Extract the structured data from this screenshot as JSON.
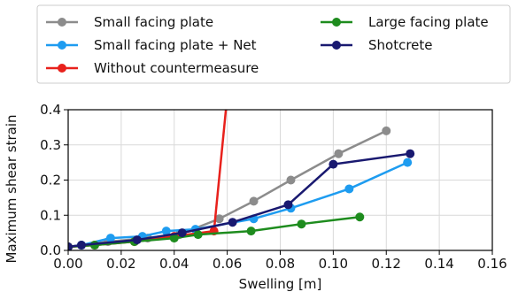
{
  "chart_data": {
    "type": "line",
    "title": "",
    "xlabel": "Swelling [m]",
    "ylabel": "Maximum shear strain",
    "xlim": [
      0.0,
      0.16
    ],
    "ylim": [
      0.0,
      0.4
    ],
    "xticks": [
      "0.00",
      "0.02",
      "0.04",
      "0.06",
      "0.08",
      "0.10",
      "0.12",
      "0.14",
      "0.16"
    ],
    "yticks": [
      "0.0",
      "0.1",
      "0.2",
      "0.3",
      "0.4"
    ],
    "grid": true,
    "legend": "top",
    "series": [
      {
        "name": "Small facing plate",
        "color": "#8c8c8c",
        "x": [
          0.0,
          0.005,
          0.015,
          0.03,
          0.042,
          0.057,
          0.07,
          0.084,
          0.102,
          0.12
        ],
        "y": [
          0.01,
          0.015,
          0.025,
          0.035,
          0.045,
          0.09,
          0.14,
          0.2,
          0.275,
          0.34
        ]
      },
      {
        "name": "Small facing plate + Net",
        "color": "#1e9cf0",
        "x": [
          0.0,
          0.005,
          0.016,
          0.028,
          0.037,
          0.048,
          0.07,
          0.084,
          0.106,
          0.128
        ],
        "y": [
          0.01,
          0.015,
          0.035,
          0.04,
          0.055,
          0.06,
          0.09,
          0.12,
          0.175,
          0.25
        ]
      },
      {
        "name": "Without countermeasure",
        "color": "#e8211c",
        "x": [
          0.0,
          0.01,
          0.025,
          0.04,
          0.055,
          0.0595
        ],
        "y": [
          0.01,
          0.015,
          0.025,
          0.04,
          0.055,
          0.4
        ]
      },
      {
        "name": "Large facing plate",
        "color": "#1e8c1e",
        "x": [
          0.0,
          0.01,
          0.025,
          0.04,
          0.049,
          0.069,
          0.088,
          0.11
        ],
        "y": [
          0.01,
          0.015,
          0.025,
          0.035,
          0.045,
          0.055,
          0.075,
          0.095
        ]
      },
      {
        "name": "Shotcrete",
        "color": "#191970",
        "x": [
          0.0,
          0.005,
          0.026,
          0.043,
          0.062,
          0.083,
          0.1,
          0.129
        ],
        "y": [
          0.01,
          0.015,
          0.03,
          0.05,
          0.08,
          0.13,
          0.245,
          0.275
        ]
      }
    ]
  }
}
